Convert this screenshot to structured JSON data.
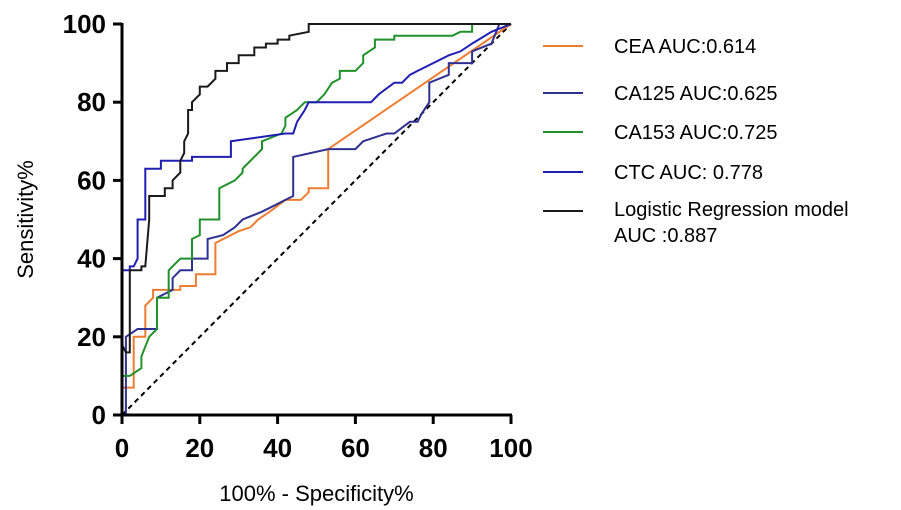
{
  "chart_data": {
    "type": "line",
    "title": "",
    "xlabel": "100% - Specificity%",
    "ylabel": "Sensitivity%",
    "xlim": [
      0,
      100
    ],
    "ylim": [
      0,
      100
    ],
    "x_ticks": [
      "0",
      "20",
      "40",
      "60",
      "80",
      "100"
    ],
    "y_ticks": [
      "0",
      "20",
      "40",
      "60",
      "80",
      "100"
    ],
    "grid": false,
    "legend_position": "right",
    "reference_line": {
      "x": [
        0,
        100
      ],
      "y": [
        0,
        100
      ],
      "style": "dashed",
      "color": "#000000"
    },
    "series": [
      {
        "name": "CEA AUC:0.614",
        "color": "#ED7D31",
        "x": [
          0,
          0,
          3,
          3,
          6,
          6,
          8,
          8,
          12,
          15,
          15,
          19,
          19,
          24,
          24,
          28,
          30,
          33,
          35,
          38,
          42,
          42,
          46,
          48,
          48,
          53,
          53,
          100
        ],
        "y": [
          0,
          7,
          7,
          20,
          20,
          28,
          30,
          32,
          32,
          32,
          33,
          33,
          36,
          36,
          44,
          46,
          47,
          48,
          50,
          52,
          55,
          55,
          55,
          57,
          58,
          58,
          68,
          100
        ]
      },
      {
        "name": "CA125 AUC:0.625",
        "color": "#2E3192",
        "x": [
          0,
          1,
          1,
          4,
          6,
          9,
          9,
          13,
          13,
          15,
          18,
          18,
          22,
          22,
          26,
          29,
          31,
          36,
          38,
          42,
          44,
          44,
          53,
          60,
          62,
          68,
          70,
          74,
          76,
          77,
          79,
          79,
          84,
          84,
          90,
          90,
          95,
          97,
          100
        ],
        "y": [
          0,
          0,
          20,
          22,
          22,
          22,
          30,
          32,
          35,
          37,
          37,
          40,
          40,
          45,
          46,
          48,
          50,
          52,
          53,
          55,
          56,
          66,
          68,
          68,
          70,
          72,
          72,
          75,
          75,
          77,
          80,
          85,
          87,
          90,
          90,
          93,
          95,
          100,
          100
        ]
      },
      {
        "name": "CA153 AUC:0.725",
        "color": "#21912C",
        "x": [
          0,
          0,
          2,
          5,
          5,
          7,
          9,
          9,
          12,
          12,
          15,
          18,
          18,
          20,
          20,
          25,
          25,
          29,
          31,
          31,
          33,
          34,
          36,
          36,
          41,
          42,
          42,
          45,
          47,
          50,
          52,
          54,
          56,
          56,
          60,
          62,
          62,
          65,
          65,
          70,
          70,
          75,
          80,
          85,
          87,
          90,
          90,
          95,
          100
        ],
        "y": [
          0,
          10,
          10,
          12,
          15,
          20,
          22,
          30,
          30,
          37,
          40,
          40,
          45,
          46,
          50,
          50,
          58,
          60,
          62,
          63,
          65,
          66,
          68,
          70,
          72,
          74,
          76,
          78,
          80,
          80,
          82,
          85,
          86,
          88,
          88,
          90,
          92,
          94,
          96,
          96,
          97,
          97,
          97,
          97,
          98,
          98,
          100,
          100,
          100
        ]
      },
      {
        "name": "CTC AUC: 0.778",
        "color": "#1F1FB4",
        "x": [
          0,
          0,
          2,
          2,
          3,
          4,
          4,
          6,
          6,
          10,
          10,
          18,
          18,
          28,
          28,
          42,
          44,
          45,
          47,
          48,
          50,
          54,
          56,
          58,
          60,
          62,
          64,
          66,
          70,
          72,
          74,
          76,
          80,
          84,
          87,
          90,
          95,
          100
        ],
        "y": [
          0,
          37,
          37,
          38,
          38,
          40,
          50,
          50,
          63,
          63,
          65,
          65,
          66,
          66,
          70,
          72,
          72,
          75,
          78,
          80,
          80,
          80,
          80,
          80,
          80,
          80,
          80,
          82,
          85,
          85,
          87,
          88,
          90,
          92,
          93,
          95,
          98,
          100
        ]
      },
      {
        "name": "Logistic Regression  model\nAUC :0.887",
        "color": "#1A1A1A",
        "x": [
          0,
          0,
          1,
          2,
          2,
          3,
          5,
          5,
          6,
          7,
          7,
          11,
          11,
          13,
          13,
          15,
          15,
          16,
          16,
          17,
          17,
          18,
          18,
          20,
          20,
          22,
          24,
          24,
          27,
          27,
          30,
          30,
          34,
          34,
          37,
          37,
          40,
          40,
          43,
          43,
          48,
          48,
          60,
          100
        ],
        "y": [
          0,
          18,
          16,
          16,
          37,
          37,
          37,
          38,
          38,
          50,
          56,
          56,
          58,
          58,
          60,
          62,
          65,
          67,
          70,
          72,
          78,
          78,
          80,
          82,
          84,
          84,
          86,
          88,
          88,
          90,
          90,
          92,
          92,
          94,
          94,
          95,
          95,
          96,
          96,
          97,
          98,
          100,
          100,
          100
        ]
      }
    ]
  }
}
